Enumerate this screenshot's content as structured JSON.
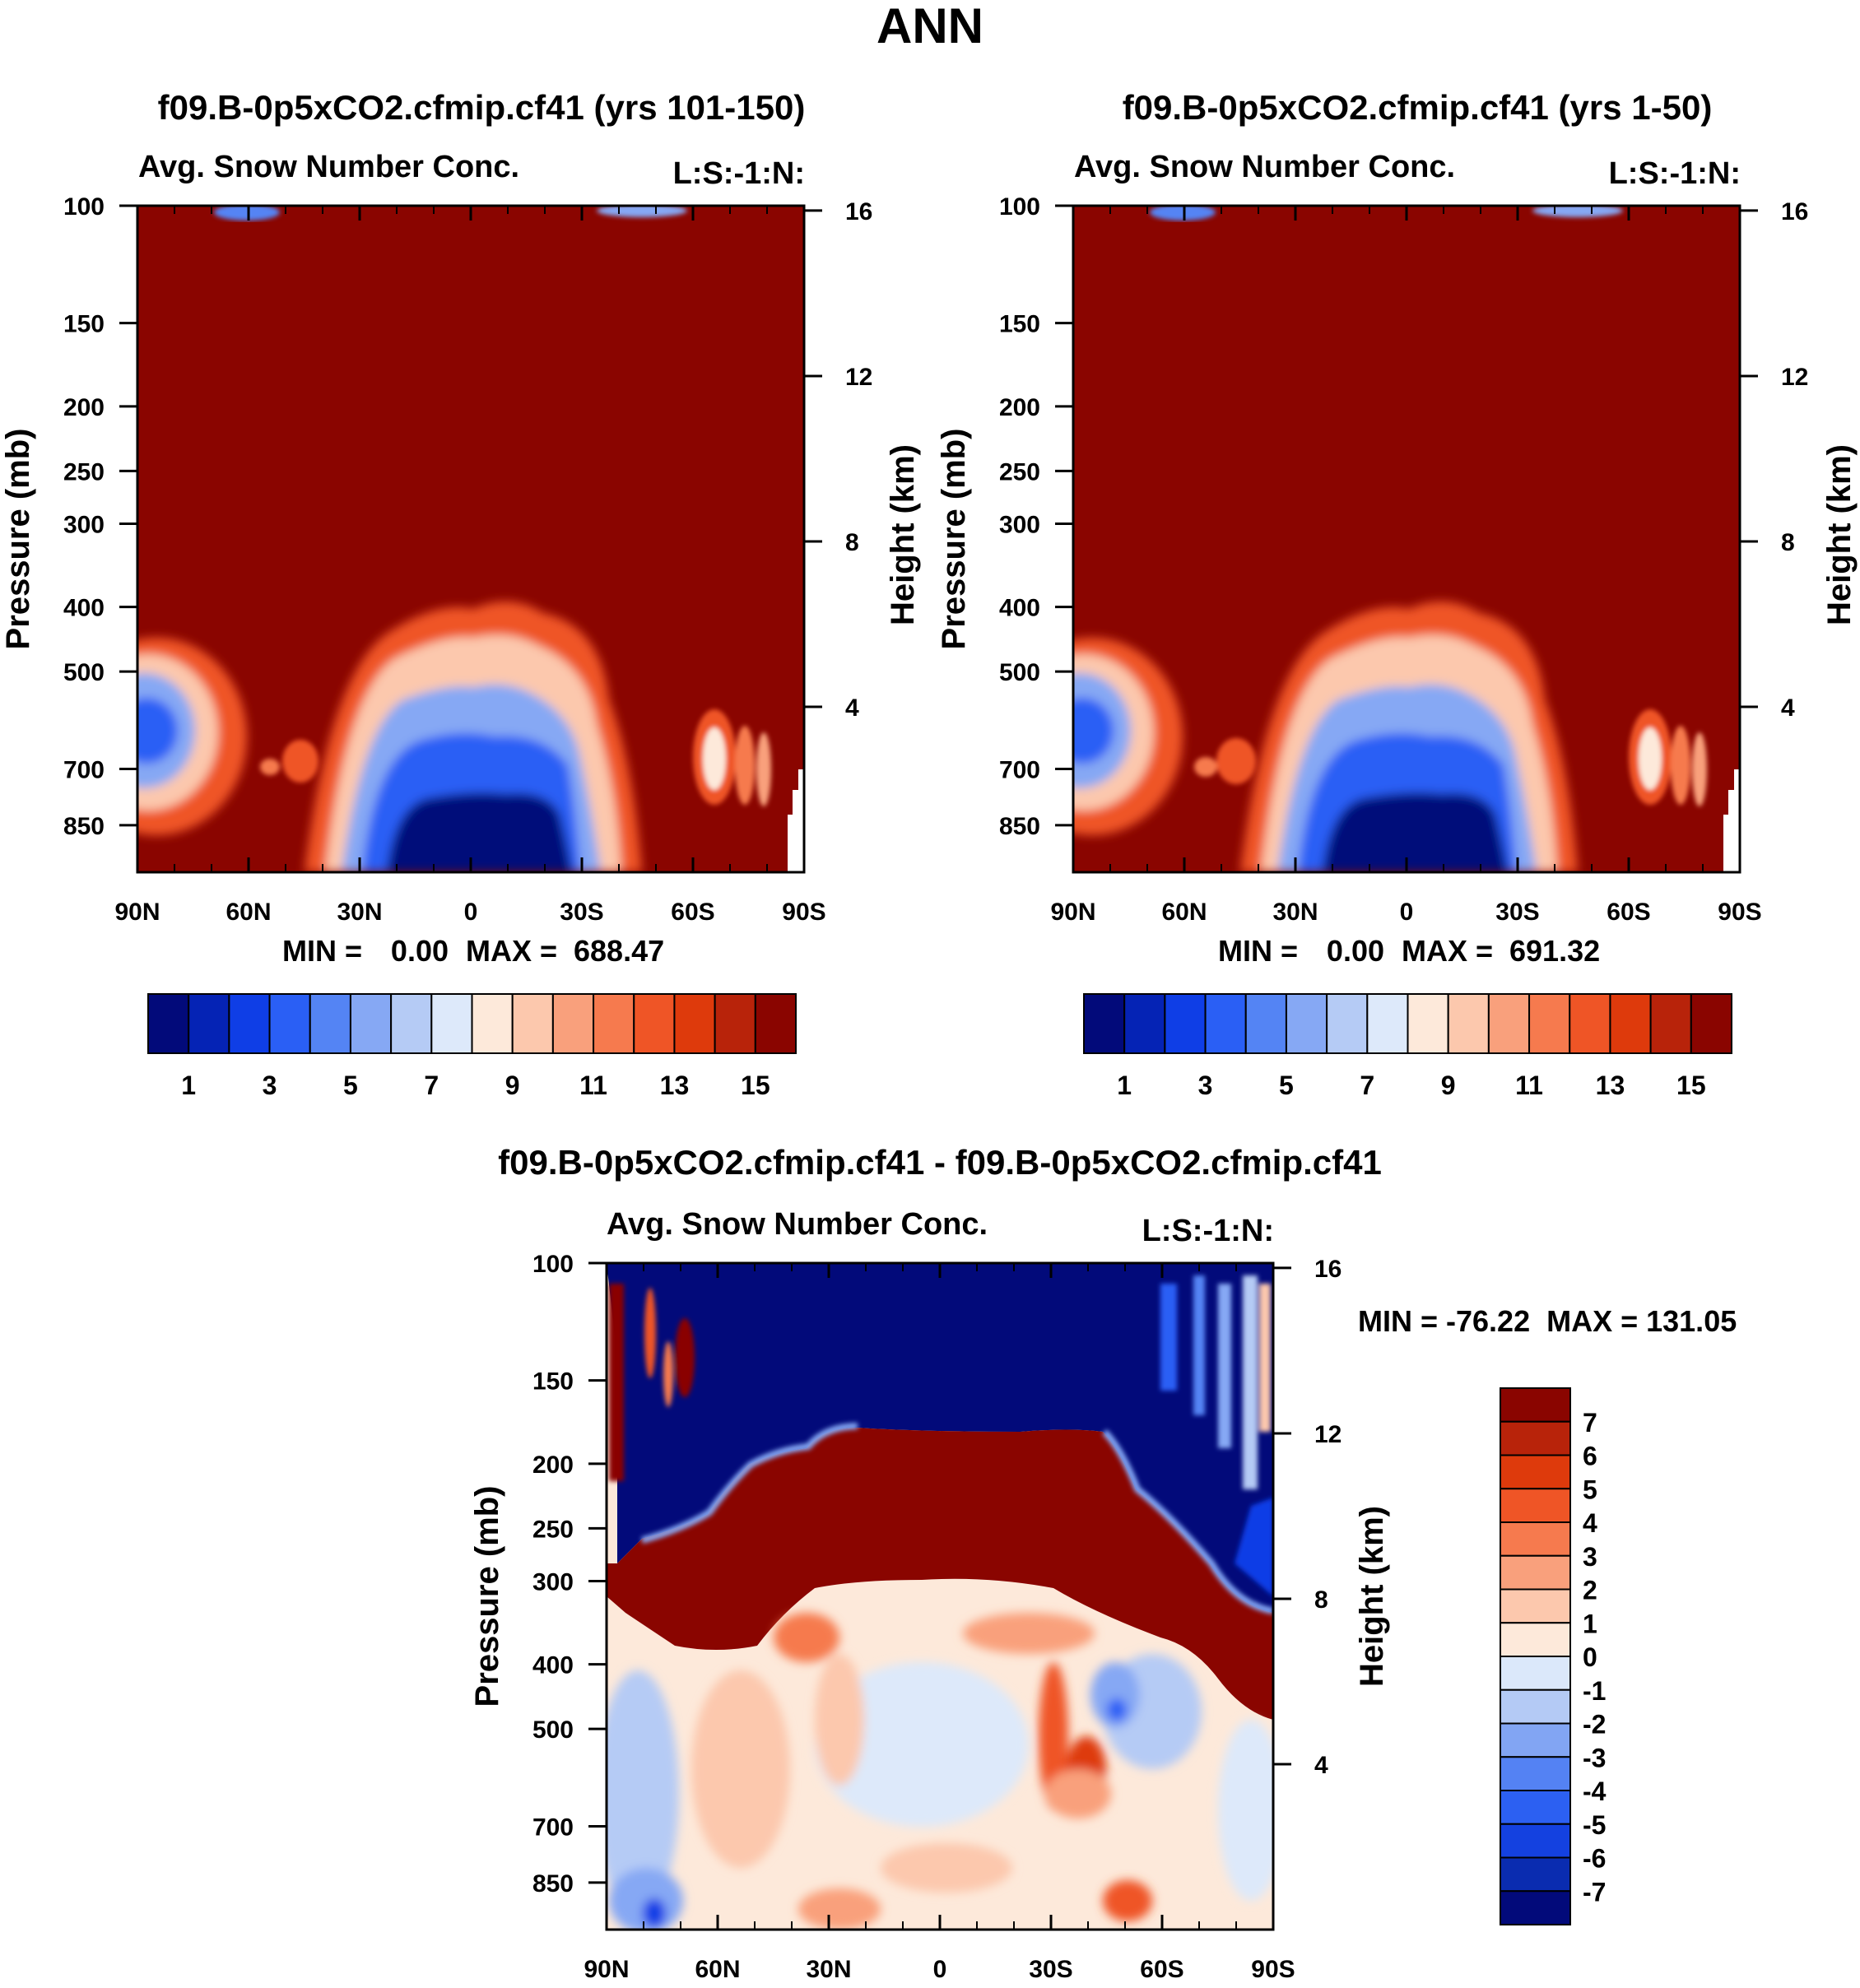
{
  "figure_title": "ANN",
  "colors": {
    "abs_scale": [
      "#020a7a",
      "#0523b5",
      "#0f3ee6",
      "#2a5ff5",
      "#5484f4",
      "#86a8f4",
      "#b5cbf5",
      "#dde9fa",
      "#fde9da",
      "#fcc8ad",
      "#f9a07c",
      "#f67a4e",
      "#ef5526",
      "#de3a0c",
      "#b8230a",
      "#8a0500"
    ],
    "diff_scale": [
      "#020a7a",
      "#0a2cb0",
      "#1441e0",
      "#2c60f2",
      "#5482f3",
      "#82a5f3",
      "#b4caf5",
      "#dbe8fa",
      "#fde9da",
      "#fcc8ad",
      "#f9a07c",
      "#f67a4e",
      "#ef5526",
      "#de3a0c",
      "#b8230a",
      "#8a0500"
    ]
  },
  "chart_data": [
    {
      "type": "heatmap",
      "title": "f09.B-0p5xCO2.cfmip.cf41 (yrs 101-150)",
      "subtitle_left": "Avg. Snow Number Conc.",
      "subtitle_right": "L:S:-1:N:",
      "ylabel": "Pressure (mb)",
      "ylabel_right": "Height (km)",
      "xticks": [
        "90N",
        "60N",
        "30N",
        "0",
        "30S",
        "60S",
        "90S"
      ],
      "yticks": [
        "100",
        "150",
        "200",
        "250",
        "300",
        "400",
        "500",
        "700",
        "850"
      ],
      "yticks_right": [
        "16",
        "12",
        "8",
        "4"
      ],
      "ylim": [
        100,
        1000
      ],
      "stats": {
        "min_label": "MIN =",
        "min": "0.00",
        "max_label": "MAX =",
        "max": "688.47"
      },
      "colorbar_labels": [
        "1",
        "3",
        "5",
        "7",
        "9",
        "11",
        "13",
        "15"
      ],
      "levels": [
        1,
        2,
        3,
        4,
        5,
        6,
        7,
        8,
        9,
        10,
        11,
        12,
        13,
        14,
        15
      ]
    },
    {
      "type": "heatmap",
      "title": "f09.B-0p5xCO2.cfmip.cf41 (yrs 1-50)",
      "subtitle_left": "Avg. Snow Number Conc.",
      "subtitle_right": "L:S:-1:N:",
      "ylabel": "Pressure (mb)",
      "ylabel_right": "Height (km)",
      "xticks": [
        "90N",
        "60N",
        "30N",
        "0",
        "30S",
        "60S",
        "90S"
      ],
      "yticks": [
        "100",
        "150",
        "200",
        "250",
        "300",
        "400",
        "500",
        "700",
        "850"
      ],
      "yticks_right": [
        "16",
        "12",
        "8",
        "4"
      ],
      "ylim": [
        100,
        1000
      ],
      "stats": {
        "min_label": "MIN =",
        "min": "0.00",
        "max_label": "MAX =",
        "max": "691.32"
      },
      "colorbar_labels": [
        "1",
        "3",
        "5",
        "7",
        "9",
        "11",
        "13",
        "15"
      ],
      "levels": [
        1,
        2,
        3,
        4,
        5,
        6,
        7,
        8,
        9,
        10,
        11,
        12,
        13,
        14,
        15
      ]
    },
    {
      "type": "heatmap",
      "title": "f09.B-0p5xCO2.cfmip.cf41 - f09.B-0p5xCO2.cfmip.cf41",
      "subtitle_left": "Avg. Snow Number Conc.",
      "subtitle_right": "L:S:-1:N:",
      "ylabel": "Pressure (mb)",
      "ylabel_right": "Height (km)",
      "xticks": [
        "90N",
        "60N",
        "30N",
        "0",
        "30S",
        "60S",
        "90S"
      ],
      "yticks": [
        "100",
        "150",
        "200",
        "250",
        "300",
        "400",
        "500",
        "700",
        "850"
      ],
      "yticks_right": [
        "16",
        "12",
        "8",
        "4"
      ],
      "ylim": [
        100,
        1000
      ],
      "stats_text": "MIN = -76.22  MAX = 131.05",
      "colorbar_labels": [
        "7",
        "6",
        "5",
        "4",
        "3",
        "2",
        "1",
        "0",
        "-1",
        "-2",
        "-3",
        "-4",
        "-5",
        "-6",
        "-7"
      ],
      "levels": [
        -7,
        -6,
        -5,
        -4,
        -3,
        -2,
        -1,
        0,
        1,
        2,
        3,
        4,
        5,
        6,
        7
      ]
    }
  ]
}
